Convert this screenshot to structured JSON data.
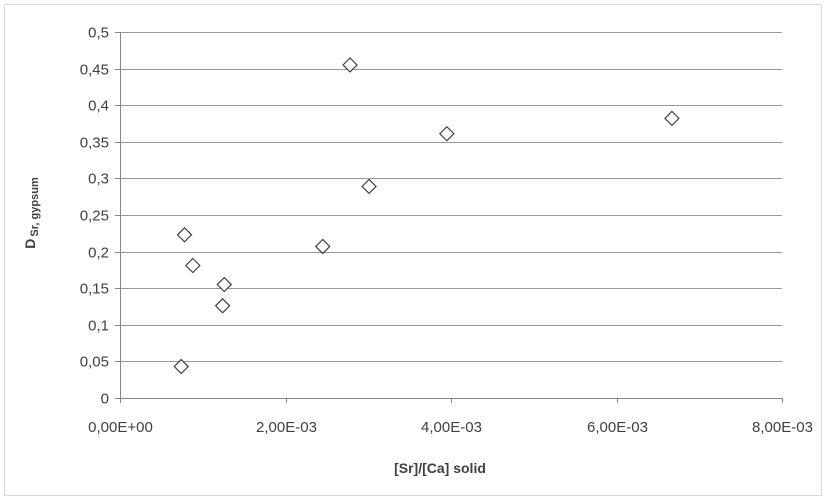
{
  "chart_data": {
    "type": "scatter",
    "title": "",
    "xlabel": "[Sr]/[Ca]  solid",
    "ylabel": {
      "main": "D",
      "subscript": "Sr, gypsum"
    },
    "xlim": [
      0,
      0.008
    ],
    "ylim": [
      0,
      0.5
    ],
    "x_ticks": [
      0,
      0.002,
      0.004,
      0.006,
      0.008
    ],
    "x_tick_labels": [
      "0,00E+00",
      "2,00E-03",
      "4,00E-03",
      "6,00E-03",
      "8,00E-03"
    ],
    "y_ticks": [
      0,
      0.05,
      0.1,
      0.15,
      0.2,
      0.25,
      0.3,
      0.35,
      0.4,
      0.45,
      0.5
    ],
    "y_tick_labels": [
      "0",
      "0,05",
      "0,1",
      "0,15",
      "0,2",
      "0,25",
      "0,3",
      "0,35",
      "0,4",
      "0,45",
      "0,5"
    ],
    "grid": "horizontal",
    "legend": "none",
    "marker": "open-diamond",
    "colors": {
      "marker_stroke": "#404040",
      "marker_fill": "#ffffff",
      "grid": "#999999",
      "text": "#404040"
    },
    "points": [
      {
        "x": 0.00074,
        "y": 0.043
      },
      {
        "x": 0.00078,
        "y": 0.223
      },
      {
        "x": 0.00088,
        "y": 0.181
      },
      {
        "x": 0.00124,
        "y": 0.126
      },
      {
        "x": 0.00126,
        "y": 0.155
      },
      {
        "x": 0.00245,
        "y": 0.207
      },
      {
        "x": 0.00278,
        "y": 0.455
      },
      {
        "x": 0.00301,
        "y": 0.289
      },
      {
        "x": 0.00395,
        "y": 0.361
      },
      {
        "x": 0.00667,
        "y": 0.382
      }
    ]
  }
}
